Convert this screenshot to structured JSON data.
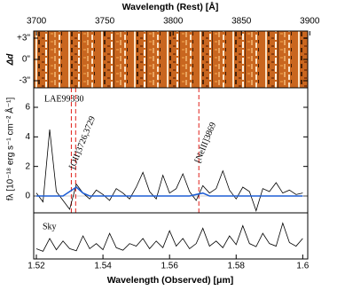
{
  "chart_data": [
    {
      "type": "image",
      "xlabel": "Wavelength (Rest) [Å]",
      "xlim": [
        3698,
        3898.5
      ],
      "xticks": [
        3700,
        3750,
        3800,
        3850,
        3900
      ],
      "ylabel": "Δd",
      "ylim": [
        -4,
        4
      ],
      "yticks": [
        {
          "value": 3,
          "label": "+3\""
        },
        {
          "value": 0,
          "label": "0\""
        },
        {
          "value": -3,
          "label": "-3\""
        }
      ]
    },
    {
      "type": "line",
      "label": "LAE99330",
      "ylabel": "fλ [10⁻¹⁸ erg s⁻¹ cm⁻² Å⁻¹]",
      "xlim": [
        1.5192,
        1.6015
      ],
      "ylim": [
        -1.14,
        7.32
      ],
      "yticks": [
        0,
        2,
        4,
        6
      ],
      "x": [
        1.52,
        1.522,
        1.524,
        1.526,
        1.528,
        1.53,
        1.532,
        1.534,
        1.536,
        1.538,
        1.54,
        1.542,
        1.544,
        1.546,
        1.548,
        1.55,
        1.552,
        1.554,
        1.556,
        1.558,
        1.56,
        1.562,
        1.564,
        1.566,
        1.568,
        1.57,
        1.572,
        1.574,
        1.576,
        1.578,
        1.58,
        1.582,
        1.584,
        1.586,
        1.588,
        1.59,
        1.592,
        1.594,
        1.596,
        1.598,
        1.6
      ],
      "series": [
        {
          "color": "#000000",
          "values": [
            0.2,
            -0.4,
            4.5,
            0.3,
            -0.3,
            -0.9,
            0.8,
            0.2,
            -0.2,
            0.4,
            0.1,
            -0.3,
            0.5,
            0.2,
            -0.2,
            0.6,
            1.6,
            0.3,
            -0.2,
            1.4,
            0.2,
            0.5,
            1.5,
            0.3,
            -0.3,
            0.7,
            0.2,
            0.5,
            1.7,
            0.4,
            -0.2,
            0.6,
            0.3,
            -1.0,
            0.5,
            0.3,
            0.9,
            0.2,
            0.4,
            0.1,
            0.2
          ]
        },
        {
          "color": "#1f5fd6",
          "values": [
            0,
            0,
            0,
            0,
            0,
            0.3,
            0.6,
            0.2,
            0,
            0,
            0,
            0,
            0,
            0,
            0,
            0,
            0,
            0,
            0,
            0,
            0,
            0,
            0,
            0,
            0.1,
            0.2,
            0,
            0,
            0,
            0,
            0,
            0,
            0,
            0,
            0,
            0,
            0,
            0,
            0,
            0,
            0
          ]
        }
      ],
      "lines": [
        {
          "x": 1.5305
        },
        {
          "x": 1.5318,
          "label": "[OII]3726,3729"
        },
        {
          "x": 1.5688,
          "label": "[NeIII]3869"
        }
      ],
      "line_color": "#e0201a"
    },
    {
      "type": "line",
      "label": "Sky",
      "xlabel": "Wavelength (Observed) [μm]",
      "xlim": [
        1.5192,
        1.6015
      ],
      "xticks": [
        1.52,
        1.54,
        1.56,
        1.58,
        1.6
      ],
      "ylim": [
        0,
        9
      ],
      "x": [
        1.52,
        1.522,
        1.524,
        1.526,
        1.528,
        1.53,
        1.532,
        1.534,
        1.536,
        1.538,
        1.54,
        1.542,
        1.544,
        1.546,
        1.548,
        1.55,
        1.552,
        1.554,
        1.556,
        1.558,
        1.56,
        1.562,
        1.564,
        1.566,
        1.568,
        1.57,
        1.572,
        1.574,
        1.576,
        1.578,
        1.58,
        1.582,
        1.584,
        1.586,
        1.588,
        1.59,
        1.592,
        1.594,
        1.596,
        1.598,
        1.6
      ],
      "color": "#000000",
      "values": [
        2,
        1.5,
        4,
        1.8,
        3.5,
        2,
        1.6,
        4.5,
        2,
        3,
        1.8,
        5,
        2.2,
        1.7,
        3,
        2.5,
        4,
        2,
        3.5,
        2.2,
        5.5,
        2.5,
        4,
        2,
        3,
        6,
        2.5,
        3.5,
        2.2,
        4.5,
        2.8,
        6.5,
        3,
        2.4,
        5,
        3,
        2.5,
        7,
        3.2,
        2.5,
        4
      ]
    }
  ]
}
